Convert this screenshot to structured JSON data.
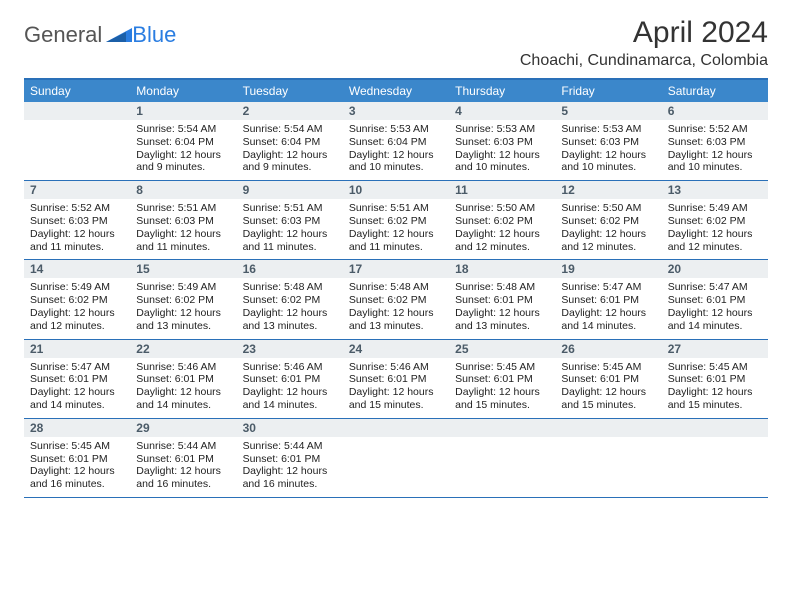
{
  "logo": {
    "dark": "General",
    "blue": "Blue"
  },
  "title": "April 2024",
  "subtitle": "Choachi, Cundinamarca, Colombia",
  "colors": {
    "header_bar": "#3b87cb",
    "rule": "#2a70b8",
    "daynum_bg": "#eceff1",
    "daynum_fg": "#4b5b68",
    "logo_blue": "#2a7de1"
  },
  "daysOfWeek": [
    "Sunday",
    "Monday",
    "Tuesday",
    "Wednesday",
    "Thursday",
    "Friday",
    "Saturday"
  ],
  "weeks": [
    [
      {
        "n": "",
        "sunrise": "",
        "sunset": "",
        "daylight1": "",
        "daylight2": ""
      },
      {
        "n": "1",
        "sunrise": "Sunrise: 5:54 AM",
        "sunset": "Sunset: 6:04 PM",
        "daylight1": "Daylight: 12 hours",
        "daylight2": "and 9 minutes."
      },
      {
        "n": "2",
        "sunrise": "Sunrise: 5:54 AM",
        "sunset": "Sunset: 6:04 PM",
        "daylight1": "Daylight: 12 hours",
        "daylight2": "and 9 minutes."
      },
      {
        "n": "3",
        "sunrise": "Sunrise: 5:53 AM",
        "sunset": "Sunset: 6:04 PM",
        "daylight1": "Daylight: 12 hours",
        "daylight2": "and 10 minutes."
      },
      {
        "n": "4",
        "sunrise": "Sunrise: 5:53 AM",
        "sunset": "Sunset: 6:03 PM",
        "daylight1": "Daylight: 12 hours",
        "daylight2": "and 10 minutes."
      },
      {
        "n": "5",
        "sunrise": "Sunrise: 5:53 AM",
        "sunset": "Sunset: 6:03 PM",
        "daylight1": "Daylight: 12 hours",
        "daylight2": "and 10 minutes."
      },
      {
        "n": "6",
        "sunrise": "Sunrise: 5:52 AM",
        "sunset": "Sunset: 6:03 PM",
        "daylight1": "Daylight: 12 hours",
        "daylight2": "and 10 minutes."
      }
    ],
    [
      {
        "n": "7",
        "sunrise": "Sunrise: 5:52 AM",
        "sunset": "Sunset: 6:03 PM",
        "daylight1": "Daylight: 12 hours",
        "daylight2": "and 11 minutes."
      },
      {
        "n": "8",
        "sunrise": "Sunrise: 5:51 AM",
        "sunset": "Sunset: 6:03 PM",
        "daylight1": "Daylight: 12 hours",
        "daylight2": "and 11 minutes."
      },
      {
        "n": "9",
        "sunrise": "Sunrise: 5:51 AM",
        "sunset": "Sunset: 6:03 PM",
        "daylight1": "Daylight: 12 hours",
        "daylight2": "and 11 minutes."
      },
      {
        "n": "10",
        "sunrise": "Sunrise: 5:51 AM",
        "sunset": "Sunset: 6:02 PM",
        "daylight1": "Daylight: 12 hours",
        "daylight2": "and 11 minutes."
      },
      {
        "n": "11",
        "sunrise": "Sunrise: 5:50 AM",
        "sunset": "Sunset: 6:02 PM",
        "daylight1": "Daylight: 12 hours",
        "daylight2": "and 12 minutes."
      },
      {
        "n": "12",
        "sunrise": "Sunrise: 5:50 AM",
        "sunset": "Sunset: 6:02 PM",
        "daylight1": "Daylight: 12 hours",
        "daylight2": "and 12 minutes."
      },
      {
        "n": "13",
        "sunrise": "Sunrise: 5:49 AM",
        "sunset": "Sunset: 6:02 PM",
        "daylight1": "Daylight: 12 hours",
        "daylight2": "and 12 minutes."
      }
    ],
    [
      {
        "n": "14",
        "sunrise": "Sunrise: 5:49 AM",
        "sunset": "Sunset: 6:02 PM",
        "daylight1": "Daylight: 12 hours",
        "daylight2": "and 12 minutes."
      },
      {
        "n": "15",
        "sunrise": "Sunrise: 5:49 AM",
        "sunset": "Sunset: 6:02 PM",
        "daylight1": "Daylight: 12 hours",
        "daylight2": "and 13 minutes."
      },
      {
        "n": "16",
        "sunrise": "Sunrise: 5:48 AM",
        "sunset": "Sunset: 6:02 PM",
        "daylight1": "Daylight: 12 hours",
        "daylight2": "and 13 minutes."
      },
      {
        "n": "17",
        "sunrise": "Sunrise: 5:48 AM",
        "sunset": "Sunset: 6:02 PM",
        "daylight1": "Daylight: 12 hours",
        "daylight2": "and 13 minutes."
      },
      {
        "n": "18",
        "sunrise": "Sunrise: 5:48 AM",
        "sunset": "Sunset: 6:01 PM",
        "daylight1": "Daylight: 12 hours",
        "daylight2": "and 13 minutes."
      },
      {
        "n": "19",
        "sunrise": "Sunrise: 5:47 AM",
        "sunset": "Sunset: 6:01 PM",
        "daylight1": "Daylight: 12 hours",
        "daylight2": "and 14 minutes."
      },
      {
        "n": "20",
        "sunrise": "Sunrise: 5:47 AM",
        "sunset": "Sunset: 6:01 PM",
        "daylight1": "Daylight: 12 hours",
        "daylight2": "and 14 minutes."
      }
    ],
    [
      {
        "n": "21",
        "sunrise": "Sunrise: 5:47 AM",
        "sunset": "Sunset: 6:01 PM",
        "daylight1": "Daylight: 12 hours",
        "daylight2": "and 14 minutes."
      },
      {
        "n": "22",
        "sunrise": "Sunrise: 5:46 AM",
        "sunset": "Sunset: 6:01 PM",
        "daylight1": "Daylight: 12 hours",
        "daylight2": "and 14 minutes."
      },
      {
        "n": "23",
        "sunrise": "Sunrise: 5:46 AM",
        "sunset": "Sunset: 6:01 PM",
        "daylight1": "Daylight: 12 hours",
        "daylight2": "and 14 minutes."
      },
      {
        "n": "24",
        "sunrise": "Sunrise: 5:46 AM",
        "sunset": "Sunset: 6:01 PM",
        "daylight1": "Daylight: 12 hours",
        "daylight2": "and 15 minutes."
      },
      {
        "n": "25",
        "sunrise": "Sunrise: 5:45 AM",
        "sunset": "Sunset: 6:01 PM",
        "daylight1": "Daylight: 12 hours",
        "daylight2": "and 15 minutes."
      },
      {
        "n": "26",
        "sunrise": "Sunrise: 5:45 AM",
        "sunset": "Sunset: 6:01 PM",
        "daylight1": "Daylight: 12 hours",
        "daylight2": "and 15 minutes."
      },
      {
        "n": "27",
        "sunrise": "Sunrise: 5:45 AM",
        "sunset": "Sunset: 6:01 PM",
        "daylight1": "Daylight: 12 hours",
        "daylight2": "and 15 minutes."
      }
    ],
    [
      {
        "n": "28",
        "sunrise": "Sunrise: 5:45 AM",
        "sunset": "Sunset: 6:01 PM",
        "daylight1": "Daylight: 12 hours",
        "daylight2": "and 16 minutes."
      },
      {
        "n": "29",
        "sunrise": "Sunrise: 5:44 AM",
        "sunset": "Sunset: 6:01 PM",
        "daylight1": "Daylight: 12 hours",
        "daylight2": "and 16 minutes."
      },
      {
        "n": "30",
        "sunrise": "Sunrise: 5:44 AM",
        "sunset": "Sunset: 6:01 PM",
        "daylight1": "Daylight: 12 hours",
        "daylight2": "and 16 minutes."
      },
      {
        "n": "",
        "sunrise": "",
        "sunset": "",
        "daylight1": "",
        "daylight2": ""
      },
      {
        "n": "",
        "sunrise": "",
        "sunset": "",
        "daylight1": "",
        "daylight2": ""
      },
      {
        "n": "",
        "sunrise": "",
        "sunset": "",
        "daylight1": "",
        "daylight2": ""
      },
      {
        "n": "",
        "sunrise": "",
        "sunset": "",
        "daylight1": "",
        "daylight2": ""
      }
    ]
  ]
}
